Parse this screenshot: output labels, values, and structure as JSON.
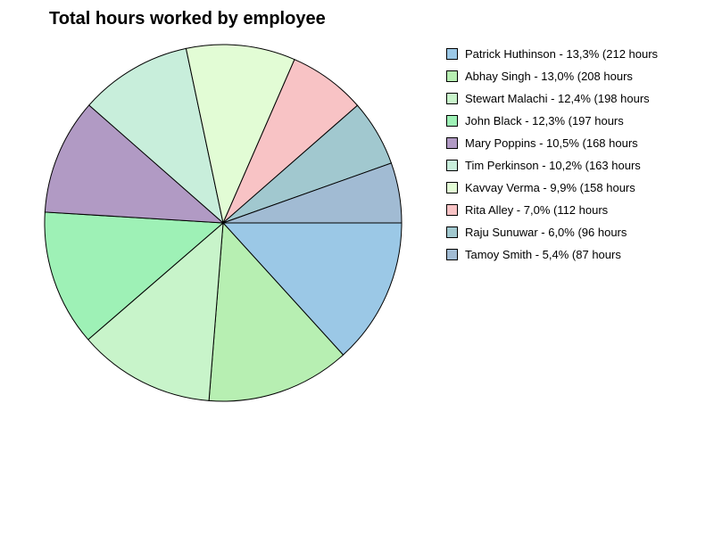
{
  "chart_data": {
    "type": "pie",
    "title": "Total hours worked by employee",
    "legend_position": "right",
    "slices": [
      {
        "label": "Patrick Huthinson - 13,3% (212 hours",
        "name": "Patrick Huthinson",
        "value": 212,
        "percent": 13.3,
        "color": "#9bc8e6"
      },
      {
        "label": "Abhay Singh - 13,0% (208 hours",
        "name": "Abhay Singh",
        "value": 208,
        "percent": 13.0,
        "color": "#b7efb2"
      },
      {
        "label": "Stewart Malachi - 12,4% (198 hours",
        "name": "Stewart Malachi",
        "value": 198,
        "percent": 12.4,
        "color": "#c8f4ca"
      },
      {
        "label": "John Black - 12,3% (197 hours",
        "name": "John Black",
        "value": 197,
        "percent": 12.3,
        "color": "#9ef1b6"
      },
      {
        "label": "Mary Poppins - 10,5% (168 hours",
        "name": "Mary Poppins",
        "value": 168,
        "percent": 10.5,
        "color": "#b19ac4"
      },
      {
        "label": "Tim Perkinson - 10,2% (163 hours",
        "name": "Tim Perkinson",
        "value": 163,
        "percent": 10.2,
        "color": "#c8eedb"
      },
      {
        "label": "Kavvay Verma - 9,9% (158 hours",
        "name": "Kavvay Verma",
        "value": 158,
        "percent": 9.9,
        "color": "#e2fcd5"
      },
      {
        "label": "Rita Alley - 7,0% (112 hours",
        "name": "Rita Alley",
        "value": 112,
        "percent": 7.0,
        "color": "#f8c3c5"
      },
      {
        "label": "Raju Sunuwar - 6,0% (96 hours",
        "name": "Raju Sunuwar",
        "value": 96,
        "percent": 6.0,
        "color": "#a1c8cf"
      },
      {
        "label": "Tamoy Smith - 5,4% (87 hours",
        "name": "Tamoy Smith",
        "value": 87,
        "percent": 5.4,
        "color": "#a1bbd3"
      }
    ]
  }
}
